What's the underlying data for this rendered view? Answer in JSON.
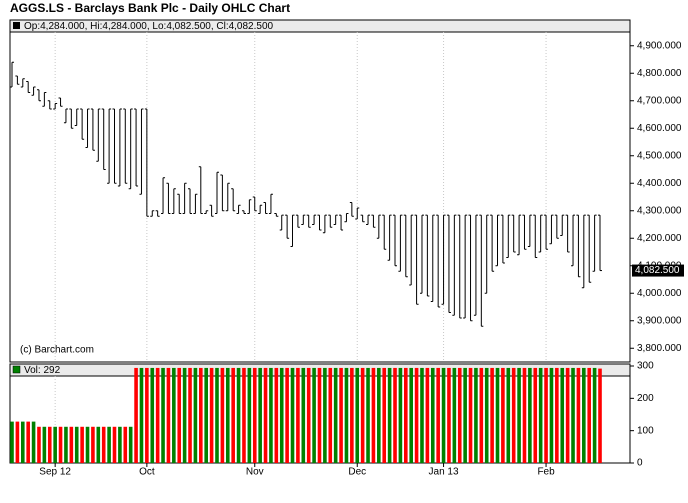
{
  "chart_data": {
    "type": "ohlc",
    "title": "AGGS.LS - Barclays Bank Plc - Daily OHLC Chart",
    "legend_text": "Op:4,284.000, Hi:4,284.000, Lo:4,082.500, Cl:4,082.500",
    "volume_legend": "Vol: 292",
    "watermark": "(c) Barchart.com",
    "color": "#000000",
    "up_color": "#008000",
    "down_color": "#ff0000",
    "grid": true,
    "categories": [
      null,
      null,
      null,
      null,
      null,
      null,
      null,
      null,
      "Sep 12",
      null,
      null,
      null,
      null,
      null,
      null,
      null,
      null,
      null,
      null,
      null,
      null,
      null,
      null,
      null,
      null,
      "Oct",
      null,
      null,
      null,
      null,
      null,
      null,
      null,
      null,
      null,
      null,
      null,
      null,
      null,
      null,
      null,
      null,
      null,
      null,
      null,
      "Nov",
      null,
      null,
      null,
      null,
      null,
      null,
      null,
      null,
      null,
      null,
      null,
      null,
      null,
      null,
      null,
      null,
      null,
      null,
      "Dec",
      null,
      null,
      null,
      null,
      null,
      null,
      null,
      null,
      null,
      null,
      null,
      null,
      null,
      null,
      null,
      "Jan 13",
      null,
      null,
      null,
      null,
      null,
      null,
      null,
      null,
      null,
      null,
      null,
      null,
      null,
      null,
      null,
      null,
      null,
      null,
      "Feb",
      null,
      null,
      null,
      null,
      null,
      null,
      null,
      null,
      null,
      null
    ],
    "open": [
      4750,
      4790,
      4750,
      4770,
      4720,
      4740,
      4680,
      4700,
      4670,
      4710,
      4620,
      4670,
      4610,
      4670,
      4530,
      4670,
      4480,
      4670,
      4400,
      4670,
      4390,
      4670,
      4380,
      4670,
      4360,
      4670,
      4280,
      4300,
      4290,
      4400,
      4290,
      4360,
      4290,
      4380,
      4290,
      4460,
      4290,
      4320,
      4290,
      4430,
      4300,
      4380,
      4290,
      4300,
      4290,
      4350,
      4290,
      4330,
      4290,
      4290,
      4230,
      4284,
      4170,
      4284,
      4250,
      4284,
      4250,
      4284,
      4220,
      4284,
      4250,
      4284,
      4260,
      4330,
      4270,
      4284,
      4250,
      4284,
      4200,
      4284,
      4120,
      4284,
      4080,
      4284,
      4030,
      4284,
      4000,
      4284,
      3970,
      4284,
      3960,
      4284,
      3920,
      4284,
      3910,
      4284,
      3920,
      4284,
      4000,
      4284,
      4100,
      4284,
      4130,
      4284,
      4140,
      4284,
      4170,
      4284,
      4150,
      4284,
      4180,
      4284,
      4210,
      4284,
      4100,
      4284,
      4020,
      4284,
      4080,
      4284
    ],
    "high": [
      4840,
      4790,
      4780,
      4770,
      4750,
      4740,
      4730,
      4700,
      4690,
      4710,
      4670,
      4670,
      4670,
      4670,
      4670,
      4670,
      4670,
      4670,
      4670,
      4670,
      4670,
      4670,
      4670,
      4670,
      4670,
      4670,
      4300,
      4300,
      4420,
      4400,
      4380,
      4360,
      4400,
      4380,
      4360,
      4460,
      4300,
      4320,
      4440,
      4430,
      4400,
      4380,
      4320,
      4300,
      4340,
      4350,
      4320,
      4330,
      4360,
      4290,
      4284,
      4284,
      4284,
      4284,
      4284,
      4284,
      4284,
      4284,
      4284,
      4284,
      4284,
      4284,
      4290,
      4330,
      4310,
      4284,
      4284,
      4284,
      4284,
      4284,
      4284,
      4284,
      4284,
      4284,
      4284,
      4284,
      4284,
      4284,
      4284,
      4284,
      4284,
      4284,
      4284,
      4284,
      4284,
      4284,
      4284,
      4284,
      4284,
      4284,
      4284,
      4284,
      4284,
      4284,
      4284,
      4284,
      4284,
      4284,
      4284,
      4284,
      4284,
      4284,
      4284,
      4284,
      4284,
      4284,
      4284,
      4284,
      4284,
      4284
    ],
    "low": [
      4750,
      4760,
      4750,
      4730,
      4720,
      4700,
      4680,
      4670,
      4670,
      4680,
      4620,
      4600,
      4610,
      4560,
      4530,
      4520,
      4480,
      4450,
      4400,
      4400,
      4390,
      4400,
      4380,
      4390,
      4360,
      4280,
      4280,
      4280,
      4290,
      4290,
      4290,
      4290,
      4290,
      4290,
      4290,
      4290,
      4290,
      4280,
      4290,
      4300,
      4300,
      4300,
      4290,
      4290,
      4290,
      4300,
      4290,
      4290,
      4290,
      4280,
      4230,
      4200,
      4170,
      4240,
      4250,
      4240,
      4250,
      4230,
      4220,
      4240,
      4250,
      4230,
      4260,
      4280,
      4270,
      4260,
      4250,
      4240,
      4200,
      4160,
      4120,
      4100,
      4080,
      4060,
      4030,
      3960,
      4000,
      3990,
      3970,
      3950,
      3960,
      3930,
      3920,
      3910,
      3910,
      3900,
      3920,
      3880,
      4000,
      4080,
      4100,
      4110,
      4130,
      4150,
      4140,
      4160,
      4170,
      4130,
      4150,
      4160,
      4180,
      4200,
      4210,
      4150,
      4100,
      4060,
      4020,
      4040,
      4080,
      4082.5
    ],
    "close": [
      4840,
      4760,
      4780,
      4730,
      4750,
      4700,
      4730,
      4670,
      4690,
      4680,
      4670,
      4600,
      4670,
      4560,
      4670,
      4520,
      4670,
      4450,
      4670,
      4400,
      4670,
      4400,
      4670,
      4390,
      4670,
      4280,
      4300,
      4280,
      4420,
      4290,
      4380,
      4290,
      4400,
      4290,
      4360,
      4290,
      4300,
      4280,
      4440,
      4300,
      4400,
      4300,
      4320,
      4290,
      4340,
      4300,
      4320,
      4290,
      4360,
      4280,
      4284,
      4200,
      4284,
      4240,
      4284,
      4240,
      4284,
      4230,
      4284,
      4240,
      4284,
      4230,
      4290,
      4280,
      4310,
      4260,
      4284,
      4240,
      4284,
      4160,
      4284,
      4100,
      4284,
      4060,
      4284,
      3960,
      4284,
      3990,
      4284,
      3950,
      4284,
      3930,
      4284,
      3910,
      4284,
      3900,
      4284,
      3880,
      4284,
      4080,
      4284,
      4110,
      4284,
      4150,
      4284,
      4160,
      4284,
      4130,
      4284,
      4160,
      4284,
      4200,
      4284,
      4150,
      4284,
      4060,
      4284,
      4040,
      4284,
      4082.5
    ],
    "volume": [
      128,
      128,
      128,
      128,
      128,
      112,
      112,
      112,
      112,
      112,
      112,
      112,
      112,
      112,
      112,
      112,
      112,
      112,
      112,
      112,
      112,
      112,
      112,
      294,
      294,
      294,
      294,
      294,
      294,
      294,
      294,
      294,
      294,
      294,
      294,
      294,
      294,
      294,
      294,
      294,
      294,
      294,
      294,
      294,
      294,
      294,
      294,
      294,
      294,
      294,
      294,
      294,
      294,
      294,
      294,
      294,
      294,
      294,
      294,
      294,
      294,
      294,
      294,
      294,
      294,
      294,
      294,
      294,
      294,
      294,
      294,
      294,
      294,
      294,
      294,
      294,
      294,
      294,
      294,
      294,
      294,
      294,
      294,
      294,
      294,
      294,
      294,
      294,
      294,
      294,
      294,
      294,
      294,
      294,
      294,
      294,
      294,
      294,
      294,
      294,
      294,
      294,
      294,
      294,
      294,
      294,
      294,
      294,
      294,
      292
    ],
    "ylim": [
      3750,
      4950
    ],
    "yticks": [
      {
        "value": 3800,
        "label": "3,800.000"
      },
      {
        "value": 3900,
        "label": "3,900.000"
      },
      {
        "value": 4000,
        "label": "4,000.000"
      },
      {
        "value": 4100,
        "label": "4,100.000"
      },
      {
        "value": 4200,
        "label": "4,200.000"
      },
      {
        "value": 4300,
        "label": "4,300.000"
      },
      {
        "value": 4400,
        "label": "4,400.000"
      },
      {
        "value": 4500,
        "label": "4,500.000"
      },
      {
        "value": 4600,
        "label": "4,600.000"
      },
      {
        "value": 4700,
        "label": "4,700.000"
      },
      {
        "value": 4800,
        "label": "4,800.000"
      },
      {
        "value": 4900,
        "label": "4,900.000"
      }
    ],
    "last_price": {
      "value": 4082.5,
      "label": "4,082.500"
    },
    "volume_ylim": [
      0,
      300
    ],
    "volume_yticks": [
      0,
      100,
      200,
      300
    ]
  }
}
